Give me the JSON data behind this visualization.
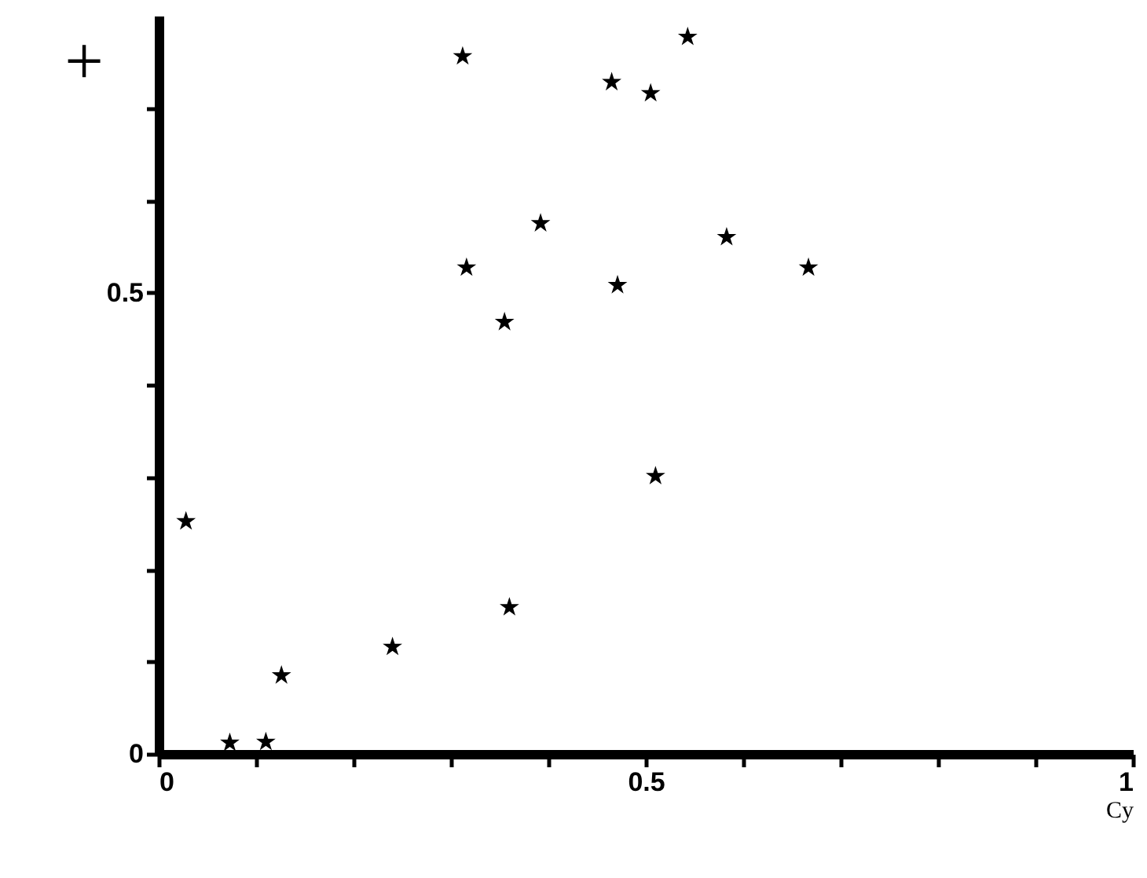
{
  "chart_data": {
    "type": "scatter",
    "xlabel": "Cy",
    "ylabel": "+",
    "marker": "star",
    "color": "#000000",
    "x": [
      0.028,
      0.073,
      0.11,
      0.126,
      0.24,
      0.312,
      0.316,
      0.355,
      0.36,
      0.392,
      0.465,
      0.471,
      0.505,
      0.51,
      0.543,
      0.583,
      0.667
    ],
    "values": [
      0.252,
      0.012,
      0.013,
      0.085,
      0.116,
      0.756,
      0.527,
      0.468,
      0.159,
      0.575,
      0.728,
      0.508,
      0.716,
      0.301,
      0.777,
      0.56,
      0.527
    ],
    "xlim": [
      0,
      1
    ],
    "ylim": [
      0,
      0.8
    ],
    "xticks": [
      0,
      {
        "value": 0.1,
        "label": null
      },
      {
        "value": 0.2,
        "label": null
      },
      {
        "value": 0.3,
        "label": null
      },
      {
        "value": 0.4,
        "label": null
      },
      0.5,
      {
        "value": 0.6,
        "label": null
      },
      {
        "value": 0.7,
        "label": null
      },
      {
        "value": 0.8,
        "label": null
      },
      {
        "value": 0.9,
        "label": null
      },
      1
    ],
    "yticks": [
      0,
      {
        "value": 0.1,
        "label": null
      },
      {
        "value": 0.2,
        "label": null
      },
      {
        "value": 0.3,
        "label": null
      },
      {
        "value": 0.4,
        "label": null
      },
      0.5,
      {
        "value": 0.6,
        "label": null
      },
      {
        "value": 0.7,
        "label": null
      }
    ],
    "grid": false
  }
}
